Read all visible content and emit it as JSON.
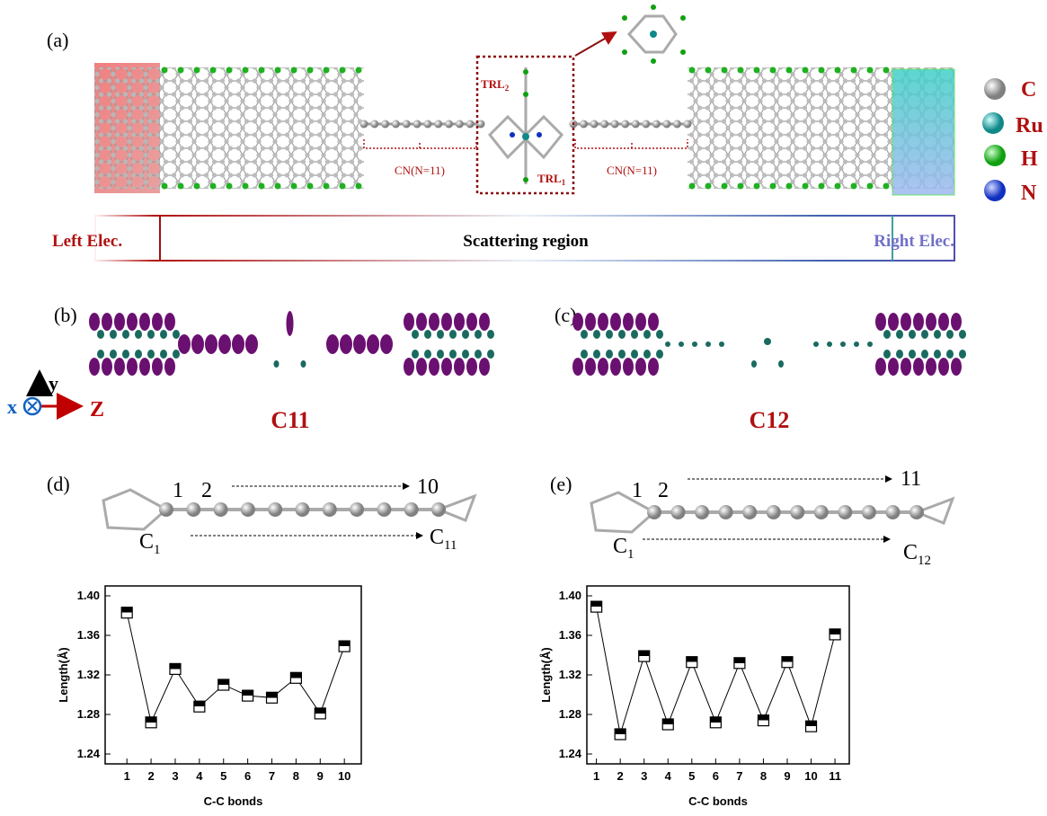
{
  "panel_a": {
    "label": "(a)",
    "trl2": {
      "text": "TRL",
      "sub": "2"
    },
    "trl1": {
      "text": "TRL",
      "sub": "1"
    },
    "chain_left": "CN(N=11)",
    "chain_right": "CN(N=11)",
    "legend": [
      "C",
      "Ru",
      "H",
      "N"
    ],
    "left_electrode": "Left Elec.",
    "scattering": "Scattering  region",
    "right_electrode": "Right Elec."
  },
  "panel_b": {
    "label": "(b)",
    "name": "C11"
  },
  "panel_c": {
    "label": "(c)",
    "name": "C12"
  },
  "axes": {
    "y": "y",
    "x": "x",
    "z": "Z"
  },
  "panel_d": {
    "label": "(d)",
    "first": "1",
    "second": "2",
    "last": "10",
    "c_start": {
      "text": "C",
      "sub": "1"
    },
    "c_end": {
      "text": "C",
      "sub": "11"
    }
  },
  "panel_e": {
    "label": "(e)",
    "first": "1",
    "second": "2",
    "last": "11",
    "c_start": {
      "text": "C",
      "sub": "1"
    },
    "c_end": {
      "text": "C",
      "sub": "12"
    }
  },
  "chart_data": [
    {
      "type": "line",
      "x_label": "C-C bonds",
      "y_label": "Length(Å)",
      "color": "#000000",
      "x": [
        1,
        2,
        3,
        4,
        5,
        6,
        7,
        8,
        9,
        10
      ],
      "values": [
        1.383,
        1.272,
        1.326,
        1.288,
        1.31,
        1.299,
        1.297,
        1.317,
        1.281,
        1.349
      ],
      "xlim": [
        0.1,
        10.7
      ],
      "xticks": [
        1,
        2,
        3,
        4,
        5,
        6,
        7,
        8,
        9,
        10
      ],
      "ylim": [
        1.23,
        1.41
      ],
      "yticks": [
        1.24,
        1.28,
        1.32,
        1.36,
        {
          "value": 1.4,
          "label": "1.40"
        }
      ]
    },
    {
      "type": "line",
      "x_label": "C-C bonds",
      "y_label": "Length(Å)",
      "color": "#000000",
      "x": [
        1,
        2,
        3,
        4,
        5,
        6,
        7,
        8,
        9,
        10,
        11
      ],
      "values": [
        1.389,
        1.26,
        1.339,
        1.27,
        1.333,
        1.272,
        1.332,
        1.274,
        1.333,
        1.268,
        1.361
      ],
      "xlim": [
        0.6,
        11.6
      ],
      "xticks": [
        1,
        2,
        3,
        4,
        5,
        6,
        7,
        8,
        9,
        10,
        11
      ],
      "ylim": [
        1.23,
        1.41
      ],
      "yticks": [
        1.24,
        1.28,
        1.32,
        1.36,
        {
          "value": 1.4,
          "label": "1.40"
        }
      ]
    }
  ]
}
